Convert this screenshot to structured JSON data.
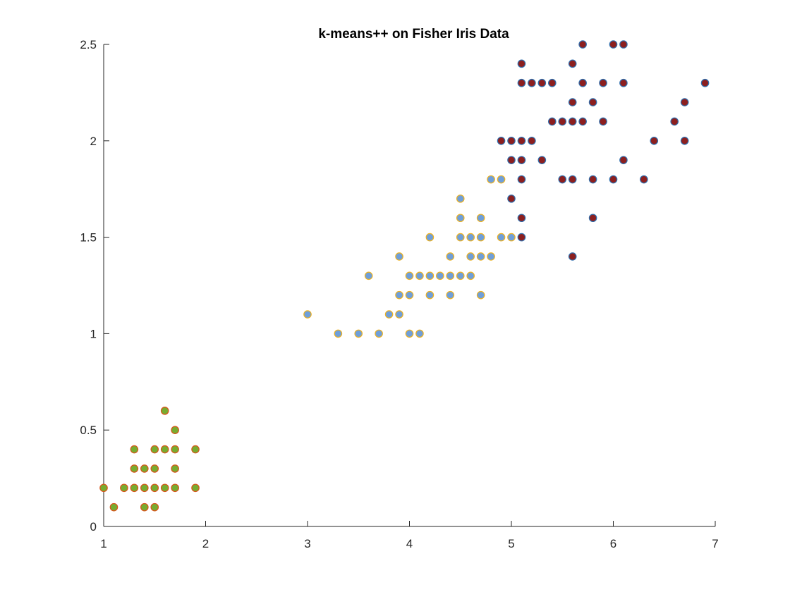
{
  "chart_data": {
    "type": "scatter",
    "title": "k-means++ on Fisher Iris Data",
    "xlabel": "",
    "ylabel": "",
    "xlim": [
      1,
      7
    ],
    "ylim": [
      0,
      2.5
    ],
    "xticks": [
      1,
      2,
      3,
      4,
      5,
      6,
      7
    ],
    "yticks": [
      0,
      0.5,
      1,
      1.5,
      2,
      2.5
    ],
    "xtick_labels": [
      "1",
      "2",
      "3",
      "4",
      "5",
      "6",
      "7"
    ],
    "ytick_labels": [
      "0",
      "0.5",
      "1",
      "1.5",
      "2",
      "2.5"
    ],
    "grid": false,
    "legend": "none",
    "series": [
      {
        "fill": "#77ac30",
        "edge": "#d95319",
        "points": [
          [
            1.0,
            0.2
          ],
          [
            1.1,
            0.1
          ],
          [
            1.2,
            0.2
          ],
          [
            1.3,
            0.2
          ],
          [
            1.3,
            0.3
          ],
          [
            1.3,
            0.4
          ],
          [
            1.4,
            0.1
          ],
          [
            1.4,
            0.2
          ],
          [
            1.4,
            0.3
          ],
          [
            1.5,
            0.1
          ],
          [
            1.5,
            0.2
          ],
          [
            1.5,
            0.3
          ],
          [
            1.5,
            0.4
          ],
          [
            1.6,
            0.2
          ],
          [
            1.6,
            0.4
          ],
          [
            1.6,
            0.6
          ],
          [
            1.7,
            0.2
          ],
          [
            1.7,
            0.3
          ],
          [
            1.7,
            0.4
          ],
          [
            1.7,
            0.5
          ],
          [
            1.9,
            0.2
          ],
          [
            1.9,
            0.4
          ]
        ]
      },
      {
        "fill": "#6f9fd9",
        "edge": "#edb120",
        "points": [
          [
            3.0,
            1.1
          ],
          [
            3.3,
            1.0
          ],
          [
            3.5,
            1.0
          ],
          [
            3.6,
            1.3
          ],
          [
            3.7,
            1.0
          ],
          [
            3.8,
            1.1
          ],
          [
            3.9,
            1.1
          ],
          [
            3.9,
            1.2
          ],
          [
            3.9,
            1.4
          ],
          [
            4.0,
            1.0
          ],
          [
            4.0,
            1.2
          ],
          [
            4.0,
            1.3
          ],
          [
            4.1,
            1.0
          ],
          [
            4.1,
            1.3
          ],
          [
            4.2,
            1.2
          ],
          [
            4.2,
            1.3
          ],
          [
            4.2,
            1.5
          ],
          [
            4.3,
            1.3
          ],
          [
            4.4,
            1.2
          ],
          [
            4.4,
            1.3
          ],
          [
            4.4,
            1.4
          ],
          [
            4.5,
            1.3
          ],
          [
            4.5,
            1.5
          ],
          [
            4.5,
            1.6
          ],
          [
            4.5,
            1.7
          ],
          [
            4.6,
            1.3
          ],
          [
            4.6,
            1.4
          ],
          [
            4.6,
            1.5
          ],
          [
            4.7,
            1.2
          ],
          [
            4.7,
            1.4
          ],
          [
            4.7,
            1.5
          ],
          [
            4.7,
            1.6
          ],
          [
            4.8,
            1.4
          ],
          [
            4.8,
            1.8
          ],
          [
            4.9,
            1.5
          ],
          [
            4.9,
            1.8
          ],
          [
            5.0,
            1.5
          ]
        ]
      },
      {
        "fill": "#8c1f1f",
        "edge": "#2f6fae",
        "points": [
          [
            4.9,
            2.0
          ],
          [
            5.0,
            1.7
          ],
          [
            5.0,
            1.9
          ],
          [
            5.0,
            2.0
          ],
          [
            5.1,
            1.5
          ],
          [
            5.1,
            1.6
          ],
          [
            5.1,
            1.8
          ],
          [
            5.1,
            1.9
          ],
          [
            5.1,
            2.0
          ],
          [
            5.1,
            2.3
          ],
          [
            5.1,
            2.4
          ],
          [
            5.2,
            2.0
          ],
          [
            5.2,
            2.3
          ],
          [
            5.3,
            1.9
          ],
          [
            5.3,
            2.3
          ],
          [
            5.4,
            2.1
          ],
          [
            5.4,
            2.3
          ],
          [
            5.5,
            1.8
          ],
          [
            5.5,
            2.1
          ],
          [
            5.6,
            1.4
          ],
          [
            5.6,
            1.8
          ],
          [
            5.6,
            2.1
          ],
          [
            5.6,
            2.2
          ],
          [
            5.6,
            2.4
          ],
          [
            5.7,
            2.1
          ],
          [
            5.7,
            2.3
          ],
          [
            5.7,
            2.5
          ],
          [
            5.8,
            1.6
          ],
          [
            5.8,
            1.8
          ],
          [
            5.8,
            2.2
          ],
          [
            5.9,
            2.1
          ],
          [
            5.9,
            2.3
          ],
          [
            6.0,
            1.8
          ],
          [
            6.0,
            2.5
          ],
          [
            6.1,
            1.9
          ],
          [
            6.1,
            2.3
          ],
          [
            6.1,
            2.5
          ],
          [
            6.3,
            1.8
          ],
          [
            6.4,
            2.0
          ],
          [
            6.6,
            2.1
          ],
          [
            6.7,
            2.0
          ],
          [
            6.7,
            2.2
          ],
          [
            6.9,
            2.3
          ]
        ]
      }
    ]
  }
}
